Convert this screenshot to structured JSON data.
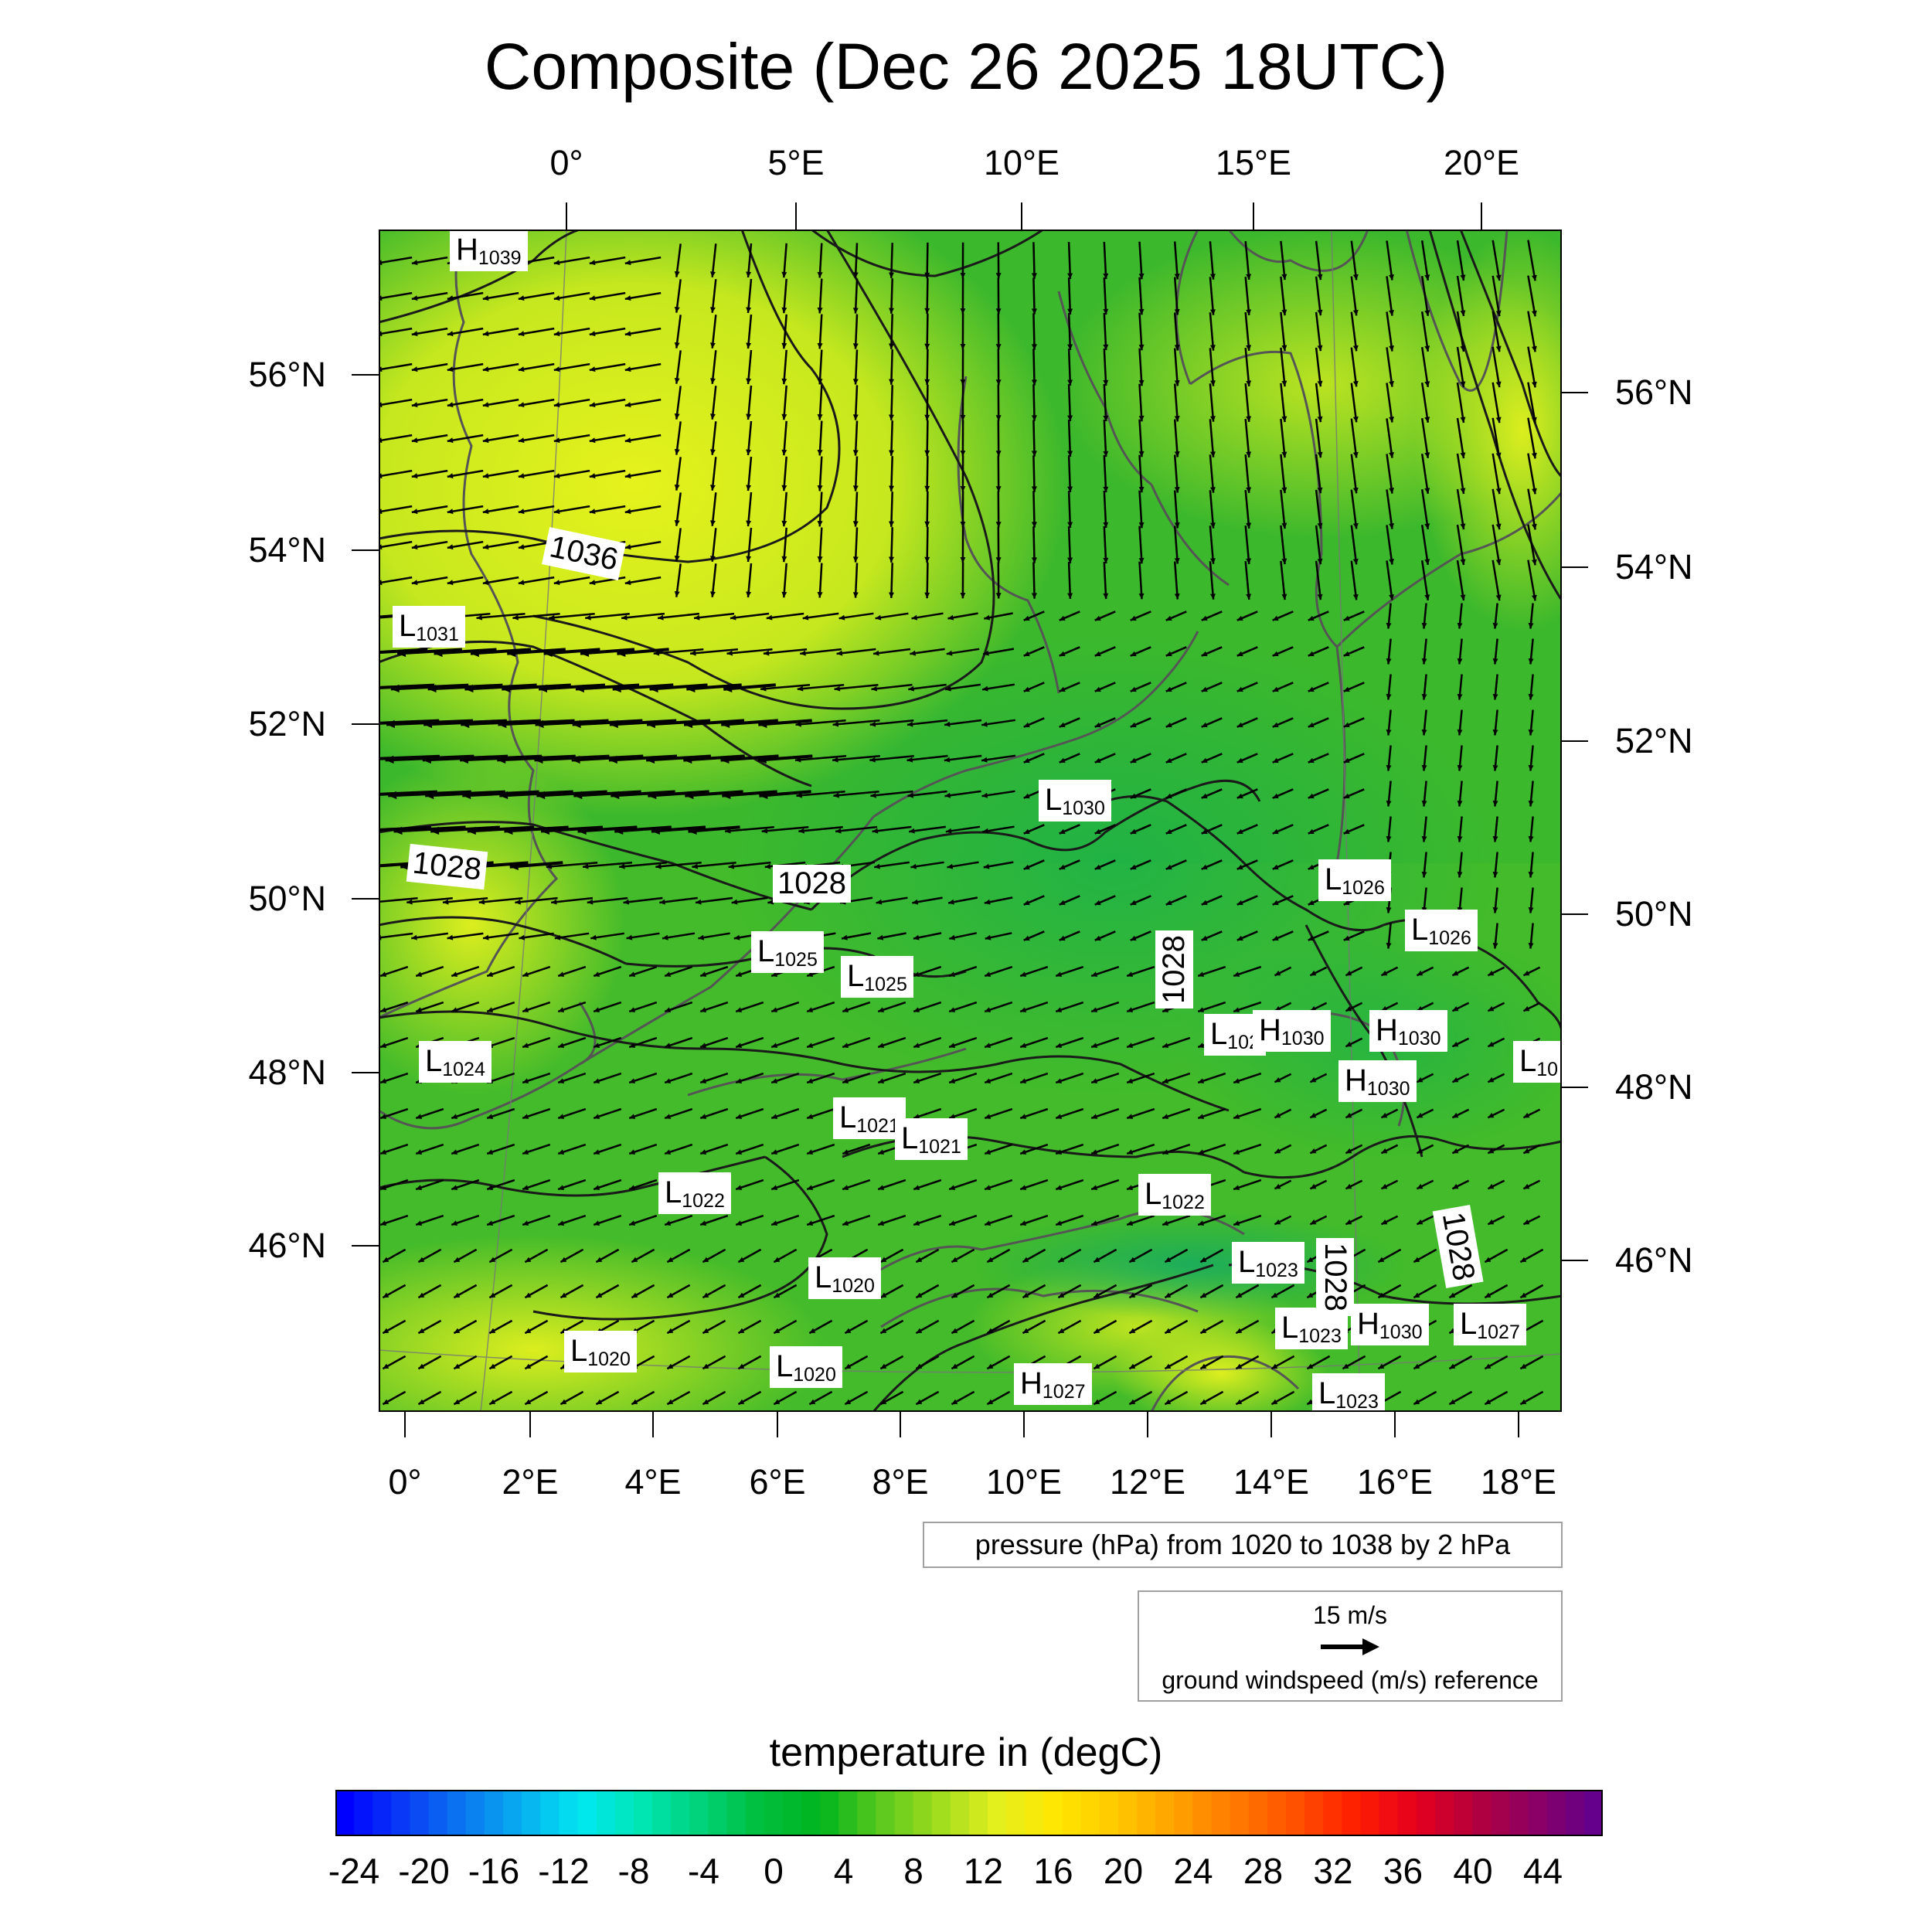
{
  "title": "Composite (Dec 26 2025 18UTC)",
  "axes": {
    "top_lon": [
      "0°",
      "5°E",
      "10°E",
      "15°E",
      "20°E"
    ],
    "bottom_lon": [
      "0°",
      "2°E",
      "4°E",
      "6°E",
      "8°E",
      "10°E",
      "12°E",
      "14°E",
      "16°E",
      "18°E"
    ],
    "left_lat": [
      "56°N",
      "54°N",
      "52°N",
      "50°N",
      "48°N",
      "46°N"
    ],
    "right_lat": [
      "56°N",
      "54°N",
      "52°N",
      "50°N",
      "48°N",
      "46°N"
    ]
  },
  "pressure_centers": [
    {
      "type": "H",
      "value": "1039"
    },
    {
      "type": "L",
      "value": "1031"
    },
    {
      "type": "L",
      "value": "1030"
    },
    {
      "type": "L",
      "value": "1026"
    },
    {
      "type": "L",
      "value": "1026"
    },
    {
      "type": "L",
      "value": "1025"
    },
    {
      "type": "L",
      "value": "1025"
    },
    {
      "type": "L",
      "value": "102"
    },
    {
      "type": "H",
      "value": "1030"
    },
    {
      "type": "H",
      "value": "1030"
    },
    {
      "type": "L",
      "value": "10"
    },
    {
      "type": "H",
      "value": "1030"
    },
    {
      "type": "L",
      "value": "1024"
    },
    {
      "type": "L",
      "value": "1021"
    },
    {
      "type": "L",
      "value": "1021"
    },
    {
      "type": "L",
      "value": "1022"
    },
    {
      "type": "L",
      "value": "1022"
    },
    {
      "type": "L",
      "value": "1023"
    },
    {
      "type": "L",
      "value": "1020"
    },
    {
      "type": "L",
      "value": "1023"
    },
    {
      "type": "H",
      "value": "1030"
    },
    {
      "type": "L",
      "value": "1027"
    },
    {
      "type": "L",
      "value": "1020"
    },
    {
      "type": "L",
      "value": "1020"
    },
    {
      "type": "H",
      "value": "1027"
    },
    {
      "type": "L",
      "value": "1023"
    }
  ],
  "isobar_labels": [
    "1036",
    "1028",
    "1028",
    "1028",
    "1028",
    "1028"
  ],
  "pressure_note": "pressure (hPa) from 1020 to 1038 by 2 hPa",
  "wind_reference": {
    "value": "15 m/s",
    "description": "ground windspeed (m/s) reference"
  },
  "colorbar": {
    "title": "temperature in (degC)",
    "labels": [
      "-24",
      "-20",
      "-16",
      "-12",
      "-8",
      "-4",
      "0",
      "4",
      "8",
      "12",
      "16",
      "20",
      "24",
      "28",
      "32",
      "36",
      "40",
      "44"
    ],
    "colors": [
      "#0000ff",
      "#0a3cf5",
      "#0a78f0",
      "#08b0f0",
      "#00e8f0",
      "#00e6b4",
      "#00d278",
      "#00be3c",
      "#00b41e",
      "#5ac81e",
      "#a0dc1e",
      "#e6f01e",
      "#ffe600",
      "#ffc800",
      "#ffa000",
      "#ff7800",
      "#ff5000",
      "#ff1e00",
      "#e6001e",
      "#b4003c",
      "#8c0064",
      "#64008c"
    ]
  },
  "map_colors": {
    "land_low": "#1eaa2c",
    "mid": "#46c22a",
    "warm": "#b6e41e",
    "warmest": "#e6f01e",
    "coast": "#555555",
    "isobar": "#1a1a1a",
    "arrow": "#000000"
  }
}
